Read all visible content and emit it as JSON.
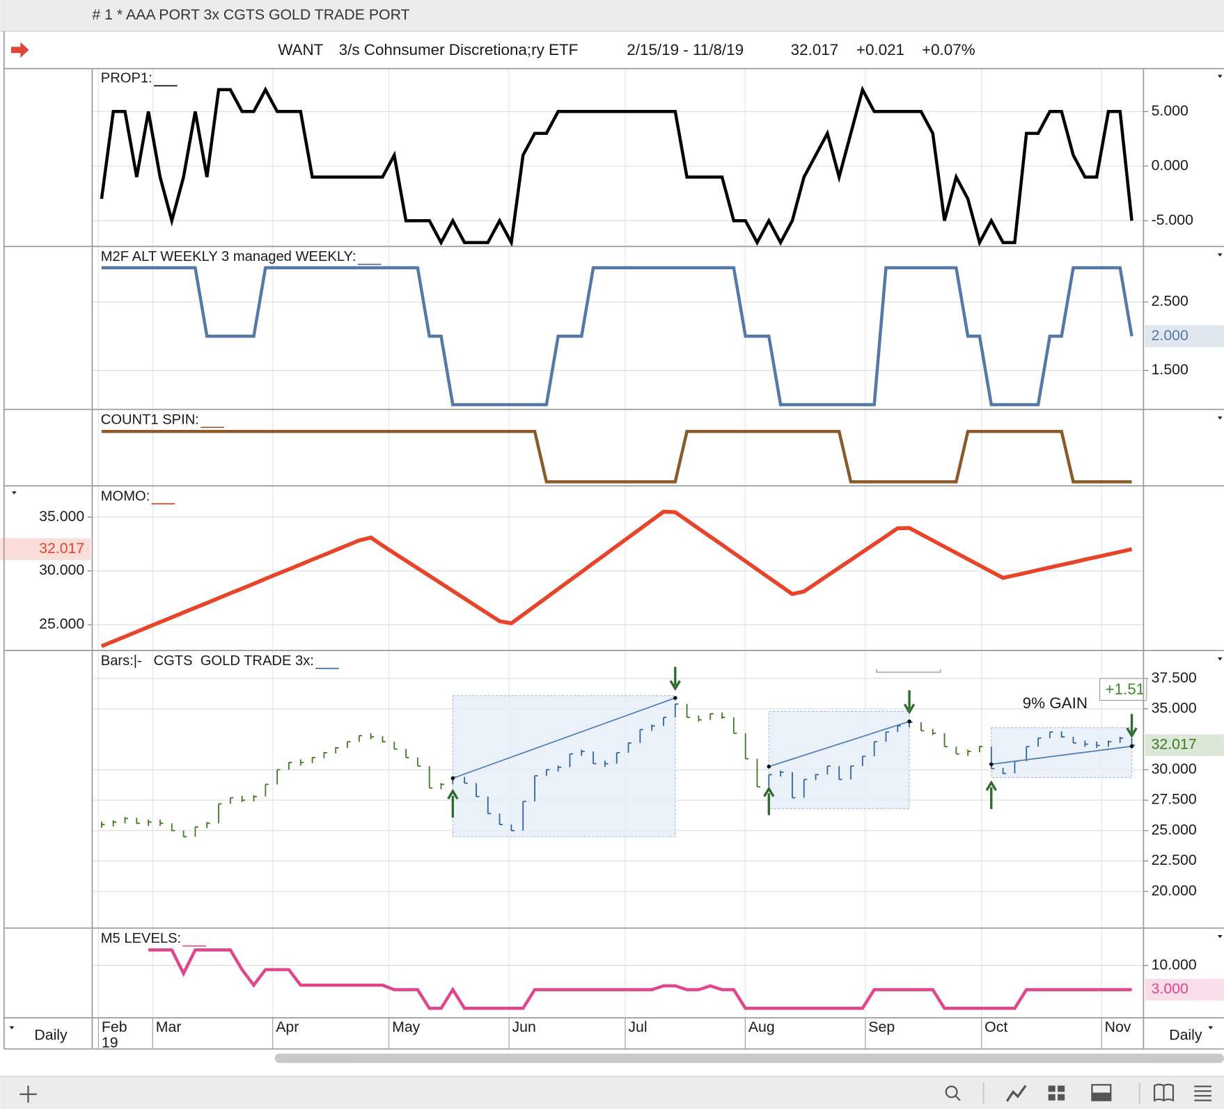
{
  "window_title": "# 1 * AAA PORT 3x CGTS GOLD TRADE PORT",
  "header": {
    "symbol": "WANT",
    "name": "3/s Cohnsumer Discretiona;ry ETF",
    "date_range": "2/15/19 - 11/8/19",
    "last": "32.017",
    "change": "+0.021",
    "change_pct": "+0.07%"
  },
  "x_axis": {
    "months": [
      "Feb",
      "Mar",
      "Apr",
      "May",
      "Jun",
      "Jul",
      "Aug",
      "Sep",
      "Oct",
      "Nov"
    ],
    "year": "19",
    "period_left": "Daily",
    "period_right": "Daily"
  },
  "chart_data": [
    {
      "type": "line",
      "title": "PROP1:",
      "color": "#000000",
      "ylim": [
        -7.36,
        8.93
      ],
      "yticks": [
        {
          "value": 5,
          "label": "5.000"
        },
        {
          "value": 0,
          "label": "0.000"
        },
        {
          "value": -5,
          "label": "-5.000"
        }
      ],
      "values": [
        -3,
        5,
        5,
        -1,
        5,
        -1,
        -5,
        -1,
        5,
        -1,
        7,
        7,
        5,
        5,
        7,
        5,
        5,
        5,
        -1,
        -1,
        -1,
        -1,
        -1,
        -1,
        -1,
        1,
        -5,
        -5,
        -5,
        -7,
        -5,
        -7,
        -7,
        -7,
        -5,
        -7,
        1,
        3,
        3,
        5,
        5,
        5,
        5,
        5,
        5,
        5,
        5,
        5,
        5,
        5,
        -1,
        -1,
        -1,
        -1,
        -5,
        -5,
        -7,
        -5,
        -7,
        -5,
        -1,
        1,
        3,
        -1,
        3,
        7,
        5,
        5,
        5,
        5,
        5,
        3,
        -5,
        -1,
        -3,
        -7,
        -5,
        -7,
        -7,
        3,
        3,
        5,
        5,
        1,
        -1,
        -1,
        5,
        5,
        -5
      ]
    },
    {
      "type": "line",
      "title": "M2F ALT WEEKLY 3 managed WEEKLY:",
      "color": "#5479a6",
      "ylim": [
        0.93,
        3.3
      ],
      "yticks": [
        {
          "value": 2.5,
          "label": "2.500"
        },
        {
          "value": 1.5,
          "label": "1.500"
        }
      ],
      "last_value_label": "2.000",
      "values": [
        3,
        3,
        3,
        3,
        3,
        3,
        3,
        3,
        3,
        2,
        2,
        2,
        2,
        2,
        3,
        3,
        3,
        3,
        3,
        3,
        3,
        3,
        3,
        3,
        3,
        3,
        3,
        3,
        2,
        2,
        1,
        1,
        1,
        1,
        1,
        1,
        1,
        1,
        1,
        2,
        2,
        2,
        3,
        3,
        3,
        3,
        3,
        3,
        3,
        3,
        3,
        3,
        3,
        3,
        3,
        2,
        2,
        2,
        1,
        1,
        1,
        1,
        1,
        1,
        1,
        1,
        1,
        3,
        3,
        3,
        3,
        3,
        3,
        3,
        2,
        2,
        1,
        1,
        1,
        1,
        1,
        2,
        2,
        3,
        3,
        3,
        3,
        3,
        2
      ]
    },
    {
      "type": "line",
      "title": "COUNT1 SPIN:",
      "color": "#8b5a2b",
      "ylim": [
        -0.08,
        1.42
      ],
      "yticks": [],
      "values": [
        1,
        1,
        1,
        1,
        1,
        1,
        1,
        1,
        1,
        1,
        1,
        1,
        1,
        1,
        1,
        1,
        1,
        1,
        1,
        1,
        1,
        1,
        1,
        1,
        1,
        1,
        1,
        1,
        1,
        1,
        1,
        1,
        1,
        1,
        1,
        1,
        1,
        1,
        0,
        0,
        0,
        0,
        0,
        0,
        0,
        0,
        0,
        0,
        0,
        0,
        1,
        1,
        1,
        1,
        1,
        1,
        1,
        1,
        1,
        1,
        1,
        1,
        1,
        1,
        0,
        0,
        0,
        0,
        0,
        0,
        0,
        0,
        0,
        0,
        1,
        1,
        1,
        1,
        1,
        1,
        1,
        1,
        1,
        0,
        0,
        0,
        0,
        0,
        0
      ]
    },
    {
      "type": "line",
      "title": "MOMO:",
      "color": "#e8442a",
      "ylim": [
        22.61,
        37.83
      ],
      "axis_side": "left",
      "yticks": [
        {
          "value": 35,
          "label": "35.000"
        },
        {
          "value": 30,
          "label": "30.000"
        },
        {
          "value": 25,
          "label": "25.000"
        }
      ],
      "last_value_label": "32.017",
      "values": [
        23.0,
        23.45,
        23.89,
        24.34,
        24.79,
        25.24,
        25.68,
        26.13,
        26.58,
        27.02,
        27.47,
        27.92,
        28.36,
        28.81,
        29.26,
        29.71,
        30.15,
        30.6,
        31.05,
        31.49,
        31.94,
        32.39,
        32.83,
        33.1,
        32.36,
        31.65,
        30.95,
        30.25,
        29.55,
        28.84,
        28.14,
        27.44,
        26.73,
        26.03,
        25.33,
        25.13,
        25.92,
        26.72,
        27.52,
        28.32,
        29.12,
        29.91,
        30.71,
        31.51,
        32.31,
        33.11,
        33.9,
        34.7,
        35.5,
        35.46,
        34.7,
        33.94,
        33.18,
        32.42,
        31.66,
        30.9,
        30.13,
        29.37,
        28.61,
        27.85,
        28.09,
        28.82,
        29.56,
        30.29,
        31.02,
        31.76,
        32.49,
        33.22,
        33.96,
        33.99,
        33.41,
        32.83,
        32.25,
        31.67,
        31.09,
        30.51,
        29.93,
        29.35,
        29.59,
        29.83,
        30.08,
        30.32,
        30.56,
        30.8,
        31.05,
        31.29,
        31.53,
        31.77,
        32.017
      ]
    },
    {
      "type": "bars",
      "title": "Bars:|-   CGTS  GOLD TRADE 3x:",
      "color": "#3d7a22",
      "box_color": "#2f64a3",
      "arrow_color": "#2e6b2e",
      "ylim": [
        16.99,
        39.74
      ],
      "yticks": [
        {
          "value": 37.5,
          "label": "37.500"
        },
        {
          "value": 35,
          "label": "35.000"
        },
        {
          "value": 30,
          "label": "30.000"
        },
        {
          "value": 27.5,
          "label": "27.500"
        },
        {
          "value": 25,
          "label": "25.000"
        },
        {
          "value": 22.5,
          "label": "22.500"
        },
        {
          "value": 20,
          "label": "20.000"
        }
      ],
      "last_value_label": "32.017",
      "annotation": "9% GAIN",
      "gain_label": "+1.51",
      "values": [
        25.5,
        25.7,
        26,
        25.6,
        25.7,
        25.6,
        25,
        24.5,
        25.3,
        25.6,
        27.2,
        27.7,
        27.5,
        27.8,
        28.8,
        30,
        30.6,
        30.6,
        31,
        31.4,
        31.8,
        32.3,
        32.8,
        32.7,
        32.3,
        31.7,
        31,
        30.3,
        28.5,
        28.8,
        29.4,
        28.9,
        27.8,
        26.4,
        25.5,
        25,
        27.4,
        29.5,
        30,
        30.2,
        31.3,
        31.5,
        30.5,
        30.5,
        31.4,
        32.2,
        33.3,
        33.6,
        34.3,
        35.4,
        34.3,
        34.1,
        34.6,
        34.3,
        33,
        30.9,
        28.6,
        29.6,
        29.8,
        27.7,
        29.2,
        29.6,
        30.3,
        29.2,
        30.3,
        31.1,
        32.3,
        33.1,
        33.6,
        33.9,
        33.2,
        33,
        31.9,
        31.3,
        31.5,
        31.9,
        30.1,
        29.7,
        30.7,
        31.9,
        32.6,
        33.1,
        32.7,
        32.2,
        32.1,
        32,
        32.3,
        32.6,
        32.017
      ],
      "trade_boxes": [
        {
          "start": 30,
          "end": 49,
          "high": 36.09,
          "low": 24.49,
          "trend": [
            29.3,
            35.9
          ]
        },
        {
          "start": 57,
          "end": 69,
          "high": 34.8,
          "low": 26.8,
          "trend": [
            30.26,
            33.97
          ]
        },
        {
          "start": 76,
          "end": 88,
          "high": 33.46,
          "low": 29.36,
          "trend": [
            30.45,
            31.93
          ]
        }
      ]
    },
    {
      "type": "line",
      "title": "M5 LEVELS:",
      "color": "#e0468c",
      "ylim": [
        -5.13,
        20.6
      ],
      "yticks": [
        {
          "value": 10,
          "label": "10.000"
        }
      ],
      "last_value_label": "3.000",
      "values": [
        null,
        null,
        null,
        null,
        14.5,
        14.5,
        14.5,
        7.7,
        14.5,
        14.5,
        14.5,
        14.5,
        8.8,
        4.3,
        8.8,
        8.8,
        8.8,
        4.3,
        4.3,
        4.3,
        4.3,
        4.3,
        4.3,
        4.3,
        4.3,
        3,
        3,
        3,
        -2.4,
        -2.4,
        3,
        -2.4,
        -2.4,
        -2.4,
        -2.4,
        -2.4,
        -2.4,
        3,
        3,
        3,
        3,
        3,
        3,
        3,
        3,
        3,
        3,
        3,
        4.1,
        4.1,
        3,
        3,
        4.1,
        3,
        3,
        -2.4,
        -2.4,
        -2.4,
        -2.4,
        -2.4,
        -2.4,
        -2.4,
        -2.4,
        -2.4,
        -2.4,
        -2.4,
        3,
        3,
        3,
        3,
        3,
        3,
        -2.4,
        -2.4,
        -2.4,
        -2.4,
        -2.4,
        -2.4,
        -2.4,
        3,
        3,
        3,
        3,
        3,
        3,
        3,
        3,
        3,
        3
      ]
    }
  ]
}
